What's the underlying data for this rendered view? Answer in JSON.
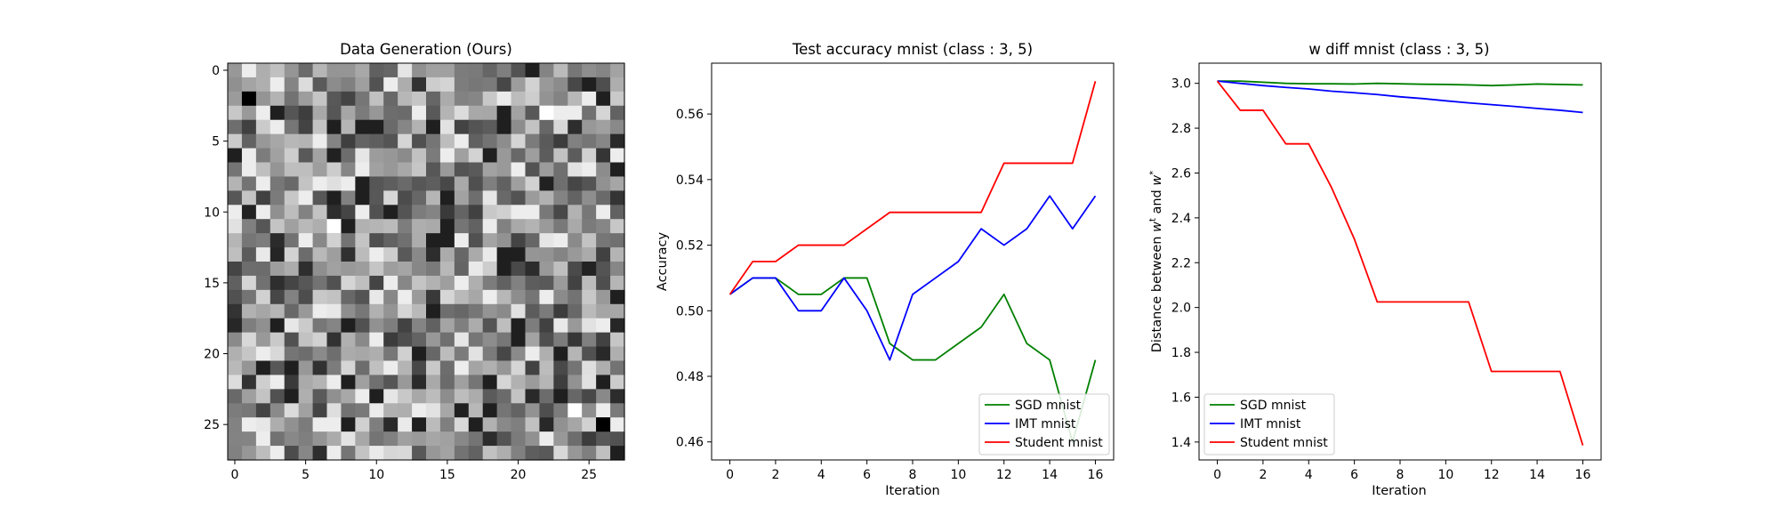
{
  "chart_data": [
    {
      "type": "heatmap",
      "title": "Data Generation (Ours)",
      "colormap": "gray",
      "shape": [
        28,
        28
      ],
      "xticks": [
        "0",
        "5",
        "10",
        "15",
        "20",
        "25"
      ],
      "yticks": [
        "0",
        "5",
        "10",
        "15",
        "20",
        "25"
      ]
    },
    {
      "type": "line",
      "title": "Test accuracy mnist (class : 3, 5)",
      "xlabel": "Iteration",
      "ylabel": "Accuracy",
      "xlim": [
        -0.8,
        16.8
      ],
      "ylim": [
        0.4545,
        0.5755
      ],
      "xticks": [
        0,
        2,
        4,
        6,
        8,
        10,
        12,
        14,
        16
      ],
      "yticks": [
        0.46,
        0.48,
        0.5,
        0.52,
        0.54,
        0.56
      ],
      "ytick_labels": [
        "0.46",
        "0.48",
        "0.50",
        "0.52",
        "0.54",
        "0.56"
      ],
      "legend_position": "lower-right",
      "x": [
        0,
        1,
        2,
        3,
        4,
        5,
        6,
        7,
        8,
        9,
        10,
        11,
        12,
        13,
        14,
        15,
        16
      ],
      "series": [
        {
          "name": "SGD mnist",
          "color": "#008000",
          "values": [
            0.505,
            0.51,
            0.51,
            0.505,
            0.505,
            0.51,
            0.51,
            0.49,
            0.485,
            0.485,
            0.49,
            0.495,
            0.505,
            0.49,
            0.485,
            0.46,
            0.485
          ]
        },
        {
          "name": "IMT mnist",
          "color": "#0000ff",
          "values": [
            0.505,
            0.51,
            0.51,
            0.5,
            0.5,
            0.51,
            0.5,
            0.485,
            0.505,
            0.51,
            0.515,
            0.525,
            0.52,
            0.525,
            0.535,
            0.525,
            0.535
          ]
        },
        {
          "name": "Student mnist",
          "color": "#ff0000",
          "values": [
            0.505,
            0.515,
            0.515,
            0.52,
            0.52,
            0.52,
            0.525,
            0.53,
            0.53,
            0.53,
            0.53,
            0.53,
            0.545,
            0.545,
            0.545,
            0.545,
            0.57
          ]
        }
      ]
    },
    {
      "type": "line",
      "title": "w diff mnist (class : 3, 5)",
      "xlabel": "Iteration",
      "ylabel_prefix": "Distance between ",
      "ylabel_w": "w",
      "ylabel_t": "t",
      "ylabel_and": " and ",
      "ylabel_star": "*",
      "xlim": [
        -0.8,
        16.8
      ],
      "ylim": [
        1.32,
        3.09
      ],
      "xticks": [
        0,
        2,
        4,
        6,
        8,
        10,
        12,
        14,
        16
      ],
      "yticks": [
        1.4,
        1.6,
        1.8,
        2.0,
        2.2,
        2.4,
        2.6,
        2.8,
        3.0
      ],
      "ytick_labels": [
        "1.4",
        "1.6",
        "1.8",
        "2.0",
        "2.2",
        "2.4",
        "2.6",
        "2.8",
        "3.0"
      ],
      "legend_position": "lower-left",
      "x": [
        0,
        1,
        2,
        3,
        4,
        5,
        6,
        7,
        8,
        9,
        10,
        11,
        12,
        13,
        14,
        15,
        16
      ],
      "series": [
        {
          "name": "SGD mnist",
          "color": "#008000",
          "values": [
            3.01,
            3.01,
            3.005,
            3.0,
            2.998,
            2.998,
            2.997,
            3.0,
            2.998,
            2.996,
            2.995,
            2.993,
            2.99,
            2.993,
            2.997,
            2.995,
            2.993
          ]
        },
        {
          "name": "IMT mnist",
          "color": "#0000ff",
          "values": [
            3.01,
            3.0,
            2.99,
            2.982,
            2.975,
            2.965,
            2.958,
            2.95,
            2.94,
            2.932,
            2.922,
            2.913,
            2.905,
            2.897,
            2.888,
            2.88,
            2.87
          ]
        },
        {
          "name": "Student mnist",
          "color": "#ff0000",
          "values": [
            3.01,
            2.88,
            2.88,
            2.73,
            2.73,
            2.535,
            2.305,
            2.025,
            2.025,
            2.025,
            2.025,
            2.025,
            1.715,
            1.715,
            1.715,
            1.715,
            1.385
          ]
        }
      ]
    }
  ]
}
